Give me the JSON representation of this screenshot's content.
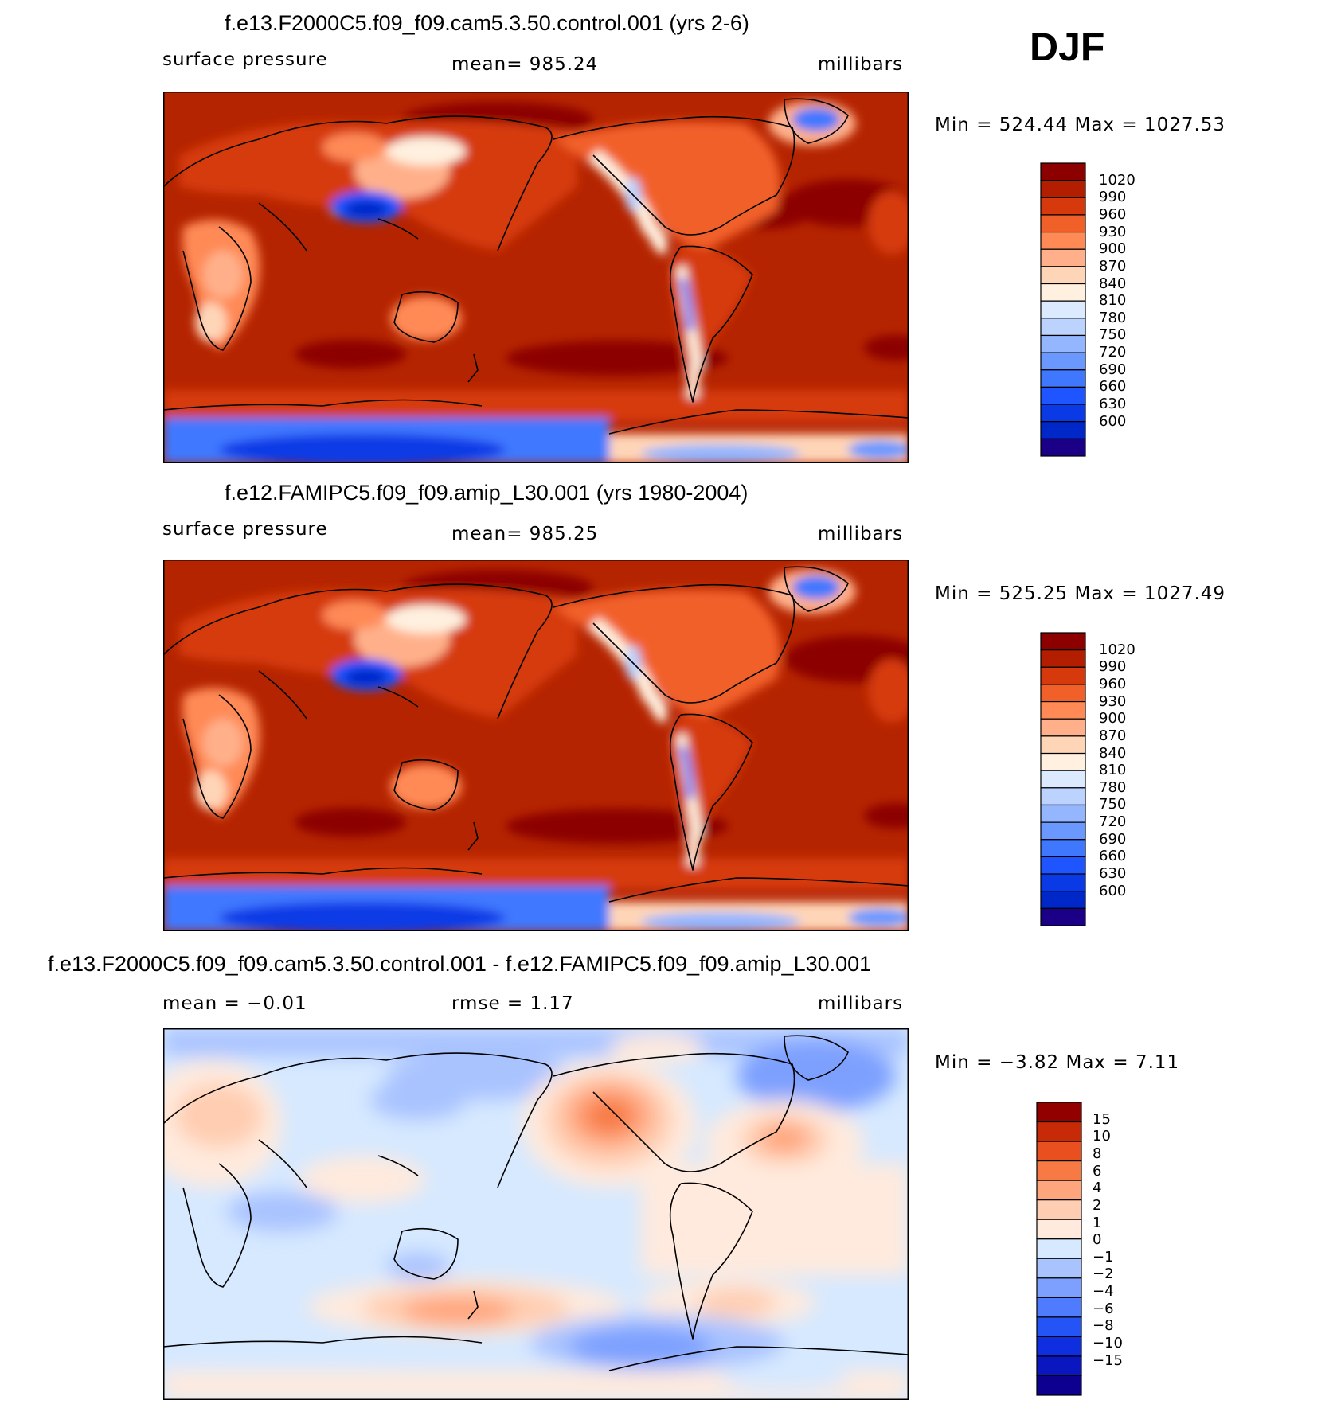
{
  "season": "DJF",
  "colors": {
    "abs_scale": [
      "#1b0087",
      "#0028c8",
      "#0a3ae6",
      "#1f55ff",
      "#3f78ff",
      "#6a98ff",
      "#94b6ff",
      "#bcd3ff",
      "#dceaff",
      "#fff0df",
      "#ffd5b8",
      "#ffb08a",
      "#ff8a56",
      "#f2602a",
      "#d63a0c",
      "#b31e00",
      "#8c0000"
    ],
    "diff_scale": [
      "#0d0090",
      "#0a17c0",
      "#0f2ee0",
      "#2454f5",
      "#4f7cff",
      "#7da0ff",
      "#a9c3ff",
      "#d6e9ff",
      "#ffeadd",
      "#ffcdb1",
      "#ffa57d",
      "#f77a45",
      "#e85020",
      "#c62a06",
      "#920000"
    ]
  },
  "chart_data": [
    {
      "type": "heatmap",
      "title": "f.e13.F2000C5.f09_f09.cam5.3.50.control.001 (yrs 2-6)",
      "left_label": "surface pressure",
      "center_label": "mean=  985.24",
      "units": "millibars",
      "minmax": "Min  =  524.44  Max  =  1027.53",
      "colorbar_labels": [
        "1020",
        "990",
        "960",
        "930",
        "900",
        "870",
        "840",
        "810",
        "780",
        "750",
        "720",
        "690",
        "660",
        "630",
        "600"
      ]
    },
    {
      "type": "heatmap",
      "title": "f.e12.FAMIPC5.f09_f09.amip_L30.001 (yrs 1980-2004)",
      "left_label": "surface pressure",
      "center_label": "mean=  985.25",
      "units": "millibars",
      "minmax": "Min  =  525.25  Max  =  1027.49",
      "colorbar_labels": [
        "1020",
        "990",
        "960",
        "930",
        "900",
        "870",
        "840",
        "810",
        "780",
        "750",
        "720",
        "690",
        "660",
        "630",
        "600"
      ]
    },
    {
      "type": "heatmap",
      "title": "f.e13.F2000C5.f09_f09.cam5.3.50.control.001 - f.e12.FAMIPC5.f09_f09.amip_L30.001",
      "left_label": "mean  =    −0.01",
      "center_label": "rmse  =     1.17",
      "units": "millibars",
      "minmax": "Min  =    −3.82  Max  =     7.11",
      "colorbar_labels": [
        "15",
        "10",
        "8",
        "6",
        "4",
        "2",
        "1",
        "0",
        "−1",
        "−2",
        "−4",
        "−6",
        "−8",
        "−10",
        "−15"
      ]
    }
  ]
}
